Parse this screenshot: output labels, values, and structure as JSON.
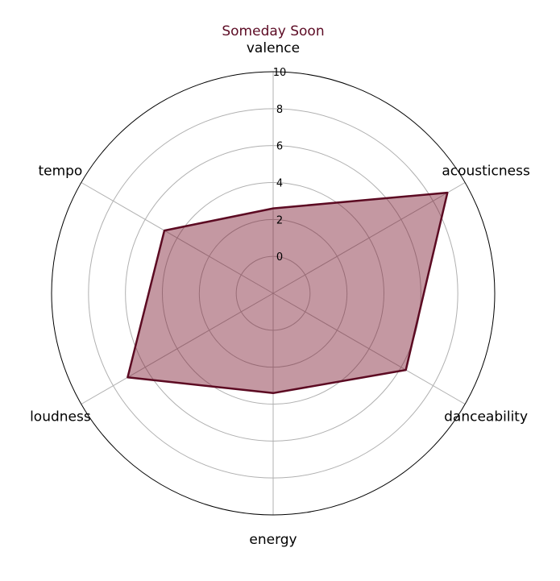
{
  "chart_data": {
    "type": "radar",
    "title": "Someday Soon",
    "axes": [
      "valence",
      "acousticness",
      "danceability",
      "energy",
      "loudness",
      "tempo"
    ],
    "values": [
      2.6,
      8.9,
      6.3,
      3.4,
      7.1,
      4.8
    ],
    "rlim": [
      -2,
      10
    ],
    "rticks": [
      0,
      2,
      4,
      6,
      8,
      10
    ],
    "grid": true,
    "colors": {
      "title": "#5c0b24",
      "line": "#5c0a22",
      "fill": "#7d1a30",
      "grid": "#b0b0b0",
      "frame": "#000000"
    }
  }
}
